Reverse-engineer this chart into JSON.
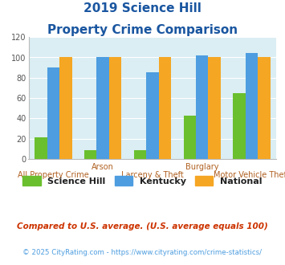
{
  "title_line1": "2019 Science Hill",
  "title_line2": "Property Crime Comparison",
  "categories": [
    "All Property Crime",
    "Arson",
    "Larceny & Theft",
    "Burglary",
    "Motor Vehicle Theft"
  ],
  "science_hill": [
    21,
    9,
    9,
    43,
    65
  ],
  "kentucky": [
    90,
    100,
    85,
    102,
    104
  ],
  "national": [
    100,
    100,
    100,
    100,
    100
  ],
  "science_hill_color": "#6abf2e",
  "kentucky_color": "#4d9de0",
  "national_color": "#f5a623",
  "bg_color": "#daeef3",
  "title_color": "#1a56a0",
  "xlabel_top_color": "#b06020",
  "xlabel_bot_color": "#b06020",
  "ylim": [
    0,
    120
  ],
  "yticks": [
    0,
    20,
    40,
    60,
    80,
    100,
    120
  ],
  "footnote1": "Compared to U.S. average. (U.S. average equals 100)",
  "footnote2": "© 2025 CityRating.com - https://www.cityrating.com/crime-statistics/",
  "footnote1_color": "#cc3300",
  "footnote2_color": "#4d9de0",
  "legend_label_color": "#222222",
  "tick_labels_top": [
    "",
    "Arson",
    "",
    "Burglary",
    ""
  ],
  "tick_labels_bot": [
    "All Property Crime",
    "",
    "Larceny & Theft",
    "",
    "Motor Vehicle Theft"
  ]
}
